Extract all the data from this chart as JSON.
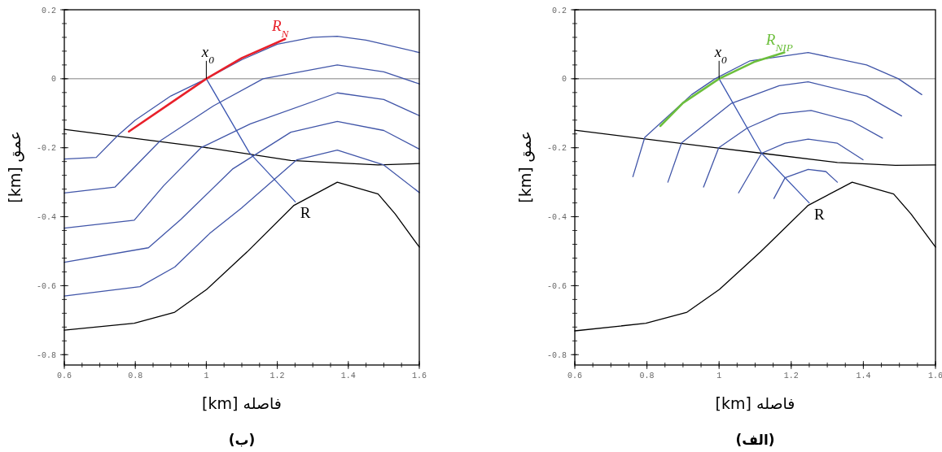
{
  "chart_data": [
    {
      "type": "line",
      "title": "(ب)",
      "xlabel": "[km] فاصله",
      "ylabel": "[km] عمق",
      "xlim": [
        0.6,
        1.6
      ],
      "ylim": [
        -0.83,
        0.2
      ],
      "xticks": [
        0.6,
        0.8,
        1,
        1.2,
        1.4,
        1.6
      ],
      "yticks": [
        0.2,
        0,
        -0.2,
        -0.4,
        -0.6,
        -0.8
      ],
      "ref_lines": [
        {
          "axis": "y",
          "value": 0,
          "color": "#808080"
        }
      ],
      "annotations": [
        {
          "text": "*x*$_{0}$",
          "x": 1,
          "y": 0
        },
        {
          "text": "R",
          "x": 1.251,
          "y": -0.357
        }
      ],
      "series": [
        {
          "color": "#000000",
          "x": [
            0.6,
            0.989,
            1.238,
            1.484,
            1.6
          ],
          "values": [
            -0.147,
            -0.198,
            -0.237,
            -0.25,
            -0.246
          ]
        },
        {
          "color": "#000000",
          "x": [
            0.6,
            0.797,
            0.911,
            1.001,
            1.115,
            1.247,
            1.369,
            1.484,
            1.532,
            1.6
          ],
          "values": [
            -0.729,
            -0.709,
            -0.677,
            -0.611,
            -0.502,
            -0.367,
            -0.3,
            -0.334,
            -0.392,
            -0.488
          ]
        },
        {
          "color": "#4055a8",
          "x": [
            0.6,
            0.69,
            0.751,
            0.8,
            0.9,
            1.0,
            1.1,
            1.2,
            1.3,
            1.369,
            1.45,
            1.5,
            1.6
          ],
          "values": [
            -0.233,
            -0.228,
            -0.164,
            -0.12,
            -0.05,
            0.0,
            0.055,
            0.1,
            0.12,
            0.123,
            0.112,
            0.1,
            0.076
          ]
        },
        {
          "color": "#4055a8",
          "x": [
            0.6,
            0.743,
            0.87,
            1.021,
            1.16,
            1.369,
            1.5,
            1.6
          ],
          "values": [
            -0.331,
            -0.314,
            -0.18,
            -0.078,
            0.0,
            0.04,
            0.02,
            -0.015
          ]
        },
        {
          "color": "#4055a8",
          "x": [
            0.6,
            0.797,
            0.88,
            0.985,
            1.124,
            1.369,
            1.5,
            1.6
          ],
          "values": [
            -0.433,
            -0.41,
            -0.31,
            -0.2,
            -0.131,
            -0.041,
            -0.06,
            -0.107
          ]
        },
        {
          "color": "#4055a8",
          "x": [
            0.6,
            0.837,
            0.928,
            1.075,
            1.238,
            1.369,
            1.5,
            1.6
          ],
          "values": [
            -0.532,
            -0.49,
            -0.408,
            -0.261,
            -0.155,
            -0.124,
            -0.15,
            -0.204
          ]
        },
        {
          "color": "#4055a8",
          "x": [
            0.6,
            0.813,
            0.911,
            1.009,
            1.099,
            1.255,
            1.369,
            1.5,
            1.6
          ],
          "values": [
            -0.63,
            -0.603,
            -0.546,
            -0.449,
            -0.375,
            -0.235,
            -0.207,
            -0.25,
            -0.33
          ]
        },
        {
          "color": "#3a55b0",
          "x": [
            1.0,
            1.121,
            1.251
          ],
          "values": [
            0.0,
            -0.214,
            -0.357
          ]
        },
        {
          "name": "*R*$_{N}$",
          "color": "#e8202a",
          "x": [
            0.782,
            0.9,
            1.0,
            1.1,
            1.222
          ],
          "values": [
            -0.153,
            -0.07,
            0.0,
            0.06,
            0.115
          ]
        }
      ]
    },
    {
      "type": "line",
      "title": "(الف)",
      "xlabel": "[km] فاصله",
      "ylabel": "[km] عمق",
      "xlim": [
        0.6,
        1.6
      ],
      "ylim": [
        -0.83,
        0.2
      ],
      "xticks": [
        0.6,
        0.8,
        1,
        1.2,
        1.4,
        1.6
      ],
      "yticks": [
        0.2,
        0,
        -0.2,
        -0.4,
        -0.6,
        -0.8
      ],
      "ref_lines": [
        {
          "axis": "y",
          "value": 0,
          "color": "#808080"
        }
      ],
      "annotations": [
        {
          "text": "*x*$_{0}$",
          "x": 1,
          "y": 0
        },
        {
          "text": "R",
          "x": 1.25,
          "y": -0.36
        }
      ],
      "series": [
        {
          "color": "#000000",
          "x": [
            0.6,
            0.989,
            1.118,
            1.328,
            1.489,
            1.6
          ],
          "values": [
            -0.149,
            -0.2,
            -0.216,
            -0.243,
            -0.251,
            -0.25
          ]
        },
        {
          "color": "#000000",
          "x": [
            0.6,
            0.797,
            0.911,
            1.001,
            1.115,
            1.247,
            1.369,
            1.484,
            1.532,
            1.6
          ],
          "values": [
            -0.731,
            -0.709,
            -0.677,
            -0.611,
            -0.502,
            -0.367,
            -0.3,
            -0.334,
            -0.392,
            -0.488
          ]
        },
        {
          "color": "#4055a8",
          "x": [
            0.761,
            0.794,
            0.924,
            0.989,
            1.086,
            1.247,
            1.409,
            1.497,
            1.562
          ],
          "values": [
            -0.284,
            -0.17,
            -0.046,
            0.0,
            0.052,
            0.076,
            0.04,
            0.0,
            -0.046
          ]
        },
        {
          "color": "#4055a8",
          "x": [
            0.858,
            0.896,
            1.033,
            1.167,
            1.247,
            1.409,
            1.506
          ],
          "values": [
            -0.3,
            -0.186,
            -0.072,
            -0.02,
            -0.009,
            -0.05,
            -0.108
          ]
        },
        {
          "color": "#4055a8",
          "x": [
            0.957,
            0.999,
            1.078,
            1.167,
            1.255,
            1.368,
            1.453
          ],
          "values": [
            -0.314,
            -0.2,
            -0.143,
            -0.102,
            -0.092,
            -0.123,
            -0.172
          ]
        },
        {
          "color": "#4055a8",
          "x": [
            1.054,
            1.118,
            1.183,
            1.247,
            1.328,
            1.399
          ],
          "values": [
            -0.331,
            -0.216,
            -0.187,
            -0.175,
            -0.187,
            -0.235
          ]
        },
        {
          "color": "#4055a8",
          "x": [
            1.152,
            1.183,
            1.247,
            1.296,
            1.328
          ],
          "values": [
            -0.347,
            -0.287,
            -0.263,
            -0.269,
            -0.3
          ]
        },
        {
          "color": "#3a55b0",
          "x": [
            1.0,
            1.118,
            1.25
          ],
          "values": [
            0.0,
            -0.216,
            -0.36
          ]
        },
        {
          "name": "*R*$_{NIP}$",
          "color": "#6cbf3c",
          "x": [
            0.837,
            0.9,
            1.0,
            1.1,
            1.181
          ],
          "values": [
            -0.137,
            -0.07,
            0.0,
            0.05,
            0.076
          ]
        }
      ]
    }
  ]
}
